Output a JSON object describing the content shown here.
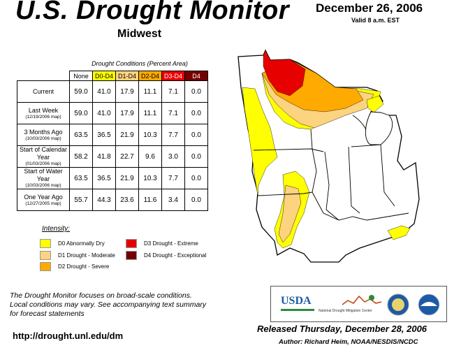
{
  "header": {
    "title": "U.S. Drought Monitor",
    "region": "Midwest",
    "date": "December 26, 2006",
    "valid": "Valid 8 a.m. EST"
  },
  "table": {
    "caption": "Drought Conditions (Percent Area)",
    "columns": [
      "None",
      "D0-D4",
      "D1-D4",
      "D2-D4",
      "D3-D4",
      "D4"
    ],
    "rows": [
      {
        "label": "Current",
        "sub": "",
        "values": [
          "59.0",
          "41.0",
          "17.9",
          "11.1",
          "7.1",
          "0.0"
        ]
      },
      {
        "label": "Last Week",
        "sub": "(12/19/2006 map)",
        "values": [
          "59.0",
          "41.0",
          "17.9",
          "11.1",
          "7.1",
          "0.0"
        ]
      },
      {
        "label": "3 Months Ago",
        "sub": "(10/03/2006 map)",
        "values": [
          "63.5",
          "36.5",
          "21.9",
          "10.3",
          "7.7",
          "0.0"
        ]
      },
      {
        "label": "Start of Calendar Year",
        "sub": "(01/03/2006 map)",
        "values": [
          "58.2",
          "41.8",
          "22.7",
          "9.6",
          "3.0",
          "0.0"
        ]
      },
      {
        "label": "Start of Water Year",
        "sub": "(10/03/2006 map)",
        "values": [
          "63.5",
          "36.5",
          "21.9",
          "10.3",
          "7.7",
          "0.0"
        ]
      },
      {
        "label": "One Year Ago",
        "sub": "(12/27/2005 map)",
        "values": [
          "55.7",
          "44.3",
          "23.6",
          "11.6",
          "3.4",
          "0.0"
        ]
      }
    ]
  },
  "legend": {
    "title": "Intensity:",
    "items": [
      {
        "label": "D0 Abnormally Dry",
        "color": "#ffff00"
      },
      {
        "label": "D1 Drought - Moderate",
        "color": "#fcd37f"
      },
      {
        "label": "D2 Drought - Severe",
        "color": "#ffaa00"
      },
      {
        "label": "D3 Drought - Extreme",
        "color": "#e60000"
      },
      {
        "label": "D4 Drought - Exceptional",
        "color": "#730000"
      }
    ]
  },
  "footer": {
    "line1": "The Drought Monitor focuses on broad-scale conditions.",
    "line2": "Local conditions may vary. See accompanying text summary",
    "line3": "for forecast statements",
    "url": "http://drought.unl.edu/dm",
    "released": "Released Thursday, December 28, 2006",
    "author": "Author: Richard Heim, NOAA/NESDIS/NCDC"
  },
  "logos": {
    "usda": "USDA",
    "ndmc": "National Drought Mitigation Center"
  }
}
